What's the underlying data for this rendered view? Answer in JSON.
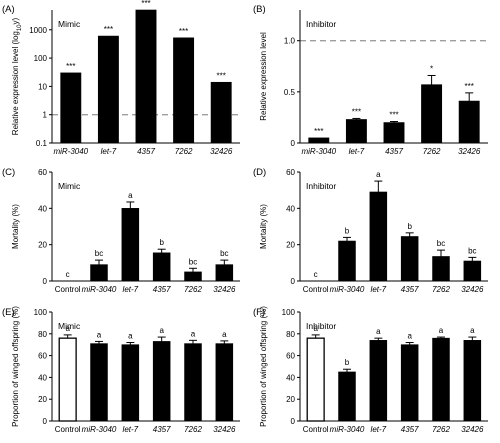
{
  "chart_data": [
    {
      "panel": "(A)",
      "title": "Mimic",
      "type": "bar",
      "scale": "log",
      "ylabel": "Relative expression level (log10y)",
      "categories": [
        "miR-3040",
        "let-7",
        "4357",
        "7262",
        "32426"
      ],
      "values": [
        30,
        600,
        5000,
        520,
        14
      ],
      "errors": [
        0,
        0,
        0,
        0,
        0
      ],
      "annotations": [
        "***",
        "***",
        "***",
        "***",
        "***"
      ],
      "ylim": [
        0.1,
        5000
      ],
      "yticks": [
        0.1,
        1,
        10,
        100,
        1000
      ],
      "ytick_labels": [
        "0.1",
        "1",
        "10",
        "100",
        "1000"
      ],
      "refline": 1,
      "bar_fill": "#000000",
      "refline_color": "#9e9e9e"
    },
    {
      "panel": "(B)",
      "title": "Inhibitor",
      "type": "bar",
      "scale": "linear",
      "ylabel": "Relative expression level",
      "categories": [
        "miR-3040",
        "let-7",
        "4357",
        "7262",
        "32426"
      ],
      "values": [
        0.05,
        0.23,
        0.2,
        0.57,
        0.41
      ],
      "errors": [
        0,
        0.01,
        0.01,
        0.09,
        0.08
      ],
      "annotations": [
        "***",
        "***",
        "***",
        "*",
        "***"
      ],
      "ylim": [
        0,
        1.3
      ],
      "yticks": [
        0,
        0.5,
        1.0
      ],
      "ytick_labels": [
        "0",
        "0.5",
        "1.0"
      ],
      "refline": 1.0,
      "bar_fill": "#000000",
      "refline_color": "#9e9e9e"
    },
    {
      "panel": "(C)",
      "title": "Mimic",
      "type": "bar",
      "scale": "linear",
      "ylabel": "Mortality (%)",
      "categories": [
        "Control",
        "miR-3040",
        "let-7",
        "4357",
        "7262",
        "32426"
      ],
      "values": [
        0,
        9,
        40,
        15.5,
        5,
        9
      ],
      "errors": [
        0,
        2.5,
        3.5,
        2,
        2,
        2.5
      ],
      "annotations": [
        "c",
        "bc",
        "a",
        "b",
        "bc",
        "bc"
      ],
      "ylim": [
        0,
        60
      ],
      "yticks": [
        0,
        20,
        40,
        60
      ],
      "ytick_labels": [
        "0",
        "20",
        "40",
        "60"
      ],
      "bar_fill": "#000000"
    },
    {
      "panel": "(D)",
      "title": "Inhibitor",
      "type": "bar",
      "scale": "linear",
      "ylabel": "Mortality (%)",
      "categories": [
        "Control",
        "miR-3040",
        "let-7",
        "4357",
        "7262",
        "32426"
      ],
      "values": [
        0,
        22,
        49,
        24.5,
        13.5,
        11
      ],
      "errors": [
        0,
        2,
        6,
        2,
        3.5,
        2
      ],
      "annotations": [
        "c",
        "b",
        "a",
        "b",
        "bc",
        "bc"
      ],
      "ylim": [
        0,
        60
      ],
      "yticks": [
        0,
        20,
        40,
        60
      ],
      "ytick_labels": [
        "0",
        "20",
        "40",
        "60"
      ],
      "bar_fill": "#000000"
    },
    {
      "panel": "(E)",
      "title": "Mimic",
      "type": "bar",
      "scale": "linear",
      "ylabel": "Proportion of winged offspring (%)",
      "categories": [
        "Control",
        "miR-3040",
        "let-7",
        "4357",
        "7262",
        "32426"
      ],
      "values": [
        76,
        71,
        70,
        73,
        71,
        71
      ],
      "errors": [
        3,
        2,
        2,
        4,
        3,
        2.5
      ],
      "annotations": [
        "a",
        "a",
        "a",
        "a",
        "a",
        "a"
      ],
      "ylim": [
        0,
        100
      ],
      "yticks": [
        0,
        20,
        40,
        60,
        80,
        100
      ],
      "ytick_labels": [
        "0",
        "20",
        "40",
        "60",
        "80",
        "100"
      ],
      "bar_fill": "#000000",
      "control_fill": "#ffffff"
    },
    {
      "panel": "(F)",
      "title": "Inhibitor",
      "type": "bar",
      "scale": "linear",
      "ylabel": "Proportion of winged offspring (%)",
      "categories": [
        "Control",
        "miR-3040",
        "let-7",
        "4357",
        "7262",
        "32426"
      ],
      "values": [
        76,
        45,
        74,
        70,
        76,
        74
      ],
      "errors": [
        3,
        2.5,
        2,
        2,
        1,
        3
      ],
      "annotations": [
        "a",
        "b",
        "a",
        "a",
        "a",
        "a"
      ],
      "ylim": [
        0,
        100
      ],
      "yticks": [
        0,
        20,
        40,
        60,
        80,
        100
      ],
      "ytick_labels": [
        "0",
        "20",
        "40",
        "60",
        "80",
        "100"
      ],
      "bar_fill": "#000000",
      "control_fill": "#ffffff"
    }
  ]
}
